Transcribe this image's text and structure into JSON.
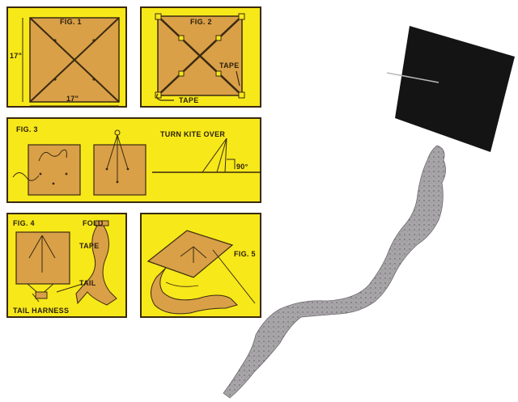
{
  "colors": {
    "panel_yellow": "#f7e81a",
    "kite_tan": "#d9a048",
    "outline": "#3a2a10",
    "kite_photo_black": "#141414",
    "tail_gray": "#a8a5a8"
  },
  "fig1": {
    "title": "FIG. 1",
    "height_label": "17\"",
    "width_label": "17\""
  },
  "fig2": {
    "title": "FIG. 2",
    "tape_label_1": "TAPE",
    "tape_label_2": "TAPE"
  },
  "fig3": {
    "title": "FIG. 3",
    "instruction": "TURN KITE OVER",
    "angle": "90°"
  },
  "fig4": {
    "title": "FIG. 4",
    "fold_label": "FOLD",
    "tape_label": "TAPE",
    "tail_label": "TAIL",
    "tail_harness_label": "TAIL HARNESS"
  },
  "fig5": {
    "title": "FIG. 5"
  }
}
